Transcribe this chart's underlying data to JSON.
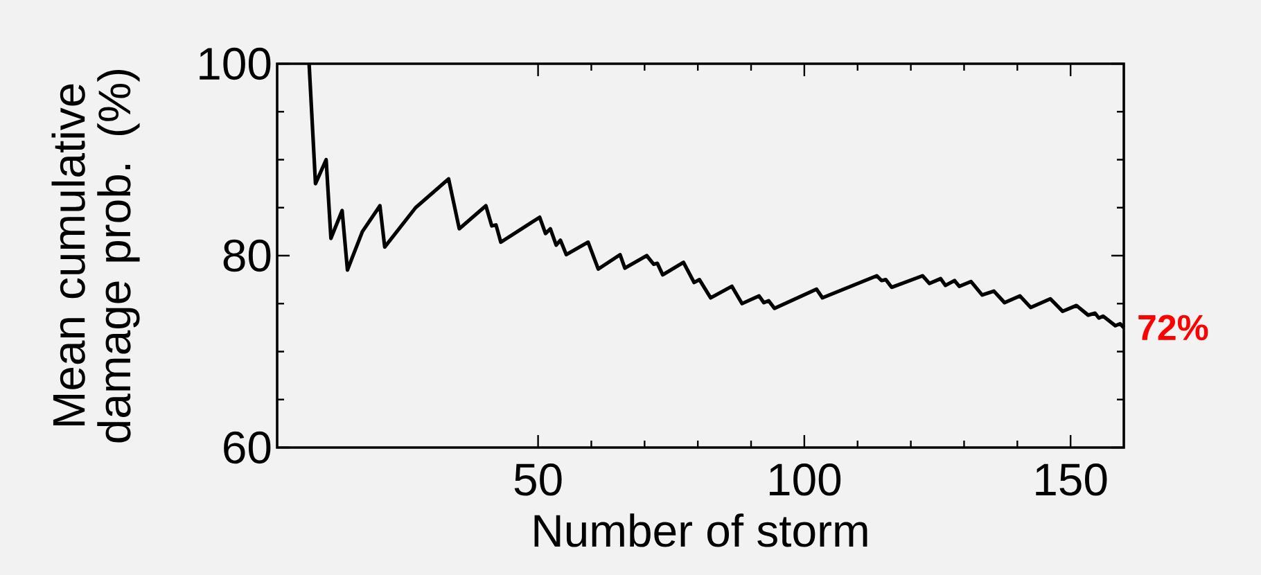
{
  "chart_data": {
    "type": "line",
    "xlabel": "Number of storm",
    "ylabel": "Mean cumulative damage prob. (%)",
    "xlim": [
      1,
      160
    ],
    "ylim": [
      60,
      100
    ],
    "xticks": [
      50,
      100,
      150
    ],
    "yticks": [
      60,
      80,
      100
    ],
    "grid": false,
    "marker": "none",
    "line_style": "solid",
    "annotations": [
      {
        "text": "72%",
        "x": 160,
        "y": 72.5
      }
    ],
    "series": [
      {
        "color": "#000000",
        "x": [
          7,
          8.2,
          10.2,
          11.1,
          13.2,
          14.2,
          17,
          20.3,
          21.2,
          27,
          33.2,
          35.2,
          40.2,
          41.3,
          42.1,
          43.0,
          50.3,
          51.4,
          52.3,
          53.4,
          54.2,
          55.3,
          59.4,
          61.3,
          65.4,
          66.3,
          70.4,
          71.7,
          72.4,
          73.4,
          77.3,
          79.3,
          80.3,
          82.4,
          86.4,
          88.3,
          91.5,
          92.4,
          93.3,
          94.4,
          102.3,
          103.4,
          113.6,
          114.5,
          115.3,
          116.4,
          122.2,
          123.5,
          125.6,
          126.5,
          128.2,
          129.1,
          131.3,
          133.4,
          135.6,
          137.6,
          140.5,
          142.5,
          146.2,
          148.5,
          151.1,
          153.3,
          154.6,
          155.3,
          156.1,
          158.4,
          159.3,
          160
        ],
        "values": [
          100,
          87.5,
          90.0,
          81.8,
          84.7,
          78.5,
          82.5,
          85.2,
          80.9,
          85.0,
          88.0,
          82.8,
          85.2,
          83.1,
          83.2,
          81.4,
          84.0,
          82.3,
          82.8,
          81.1,
          81.6,
          80.1,
          81.4,
          78.6,
          80.1,
          78.7,
          80.0,
          79.1,
          79.2,
          78.0,
          79.3,
          77.2,
          77.5,
          75.6,
          76.8,
          75.0,
          75.8,
          75.1,
          75.3,
          74.5,
          76.5,
          75.6,
          77.9,
          77.4,
          77.5,
          76.7,
          77.9,
          77.1,
          77.6,
          76.9,
          77.4,
          76.8,
          77.3,
          75.9,
          76.3,
          75.1,
          75.8,
          74.6,
          75.5,
          74.2,
          74.8,
          73.8,
          74.0,
          73.5,
          73.7,
          72.7,
          72.9,
          72.5
        ]
      }
    ]
  }
}
